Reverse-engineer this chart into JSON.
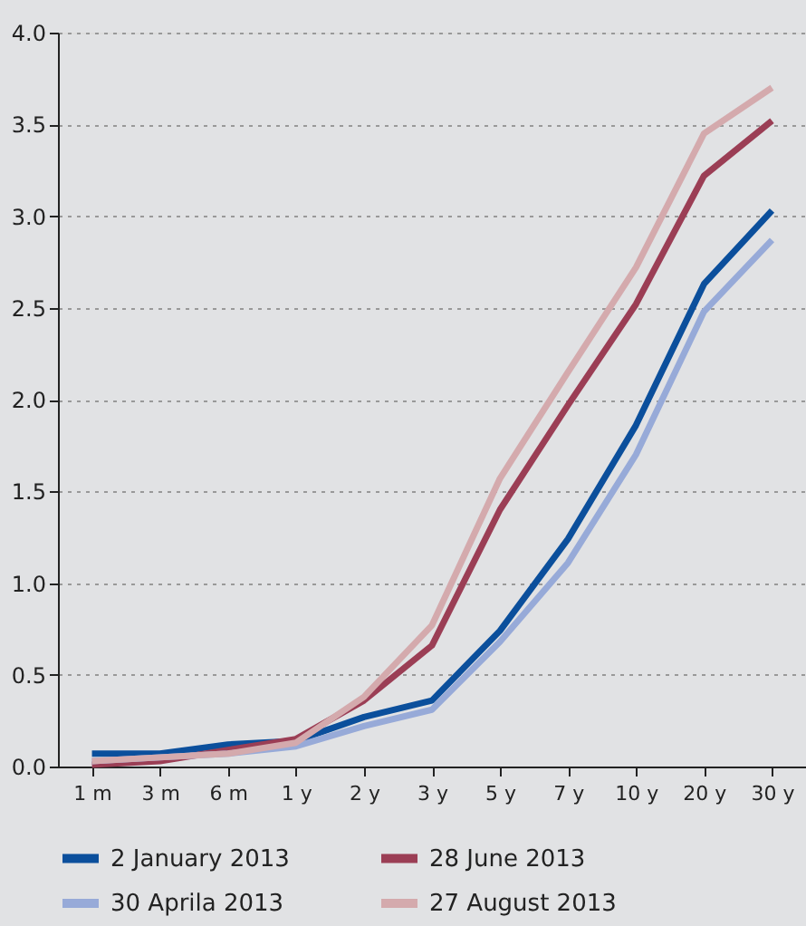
{
  "chart_data": {
    "type": "line",
    "categories": [
      "1 m",
      "3 m",
      "6 m",
      "1 y",
      "2 y",
      "3 y",
      "5 y",
      "7 y",
      "10 y",
      "20 y",
      "30 y"
    ],
    "series": [
      {
        "name": "2 January 2013",
        "color": "#0b4f9c",
        "values": [
          0.07,
          0.07,
          0.12,
          0.14,
          0.27,
          0.36,
          0.74,
          1.24,
          1.86,
          2.63,
          3.03
        ]
      },
      {
        "name": "28 June 2013",
        "color": "#9b3e55",
        "values": [
          0.01,
          0.03,
          0.09,
          0.15,
          0.36,
          0.66,
          1.4,
          1.97,
          2.52,
          3.22,
          3.52
        ]
      },
      {
        "name": "30 Aprila 2013",
        "color": "#97aad8",
        "values": [
          0.03,
          0.05,
          0.07,
          0.11,
          0.22,
          0.31,
          0.68,
          1.11,
          1.7,
          2.48,
          2.87
        ]
      },
      {
        "name": "27 August 2013",
        "color": "#d4aaad",
        "values": [
          0.03,
          0.05,
          0.07,
          0.13,
          0.38,
          0.77,
          1.57,
          2.15,
          2.72,
          3.45,
          3.7
        ]
      }
    ],
    "ylim": [
      0,
      4
    ],
    "yticks": [
      {
        "value": 0,
        "label": "0.0"
      },
      {
        "value": 0.5,
        "label": "0.5"
      },
      {
        "value": 1,
        "label": "1.0"
      },
      {
        "value": 1.5,
        "label": "1.5"
      },
      {
        "value": 2,
        "label": "2.0"
      },
      {
        "value": 2.5,
        "label": "2.5"
      },
      {
        "value": 3,
        "label": "3.0"
      },
      {
        "value": 3.5,
        "label": "3.5"
      },
      {
        "value": 4,
        "label": "4.0"
      }
    ],
    "grid": "y",
    "legend": "bottom",
    "marker": "none",
    "line_style": "solid"
  }
}
